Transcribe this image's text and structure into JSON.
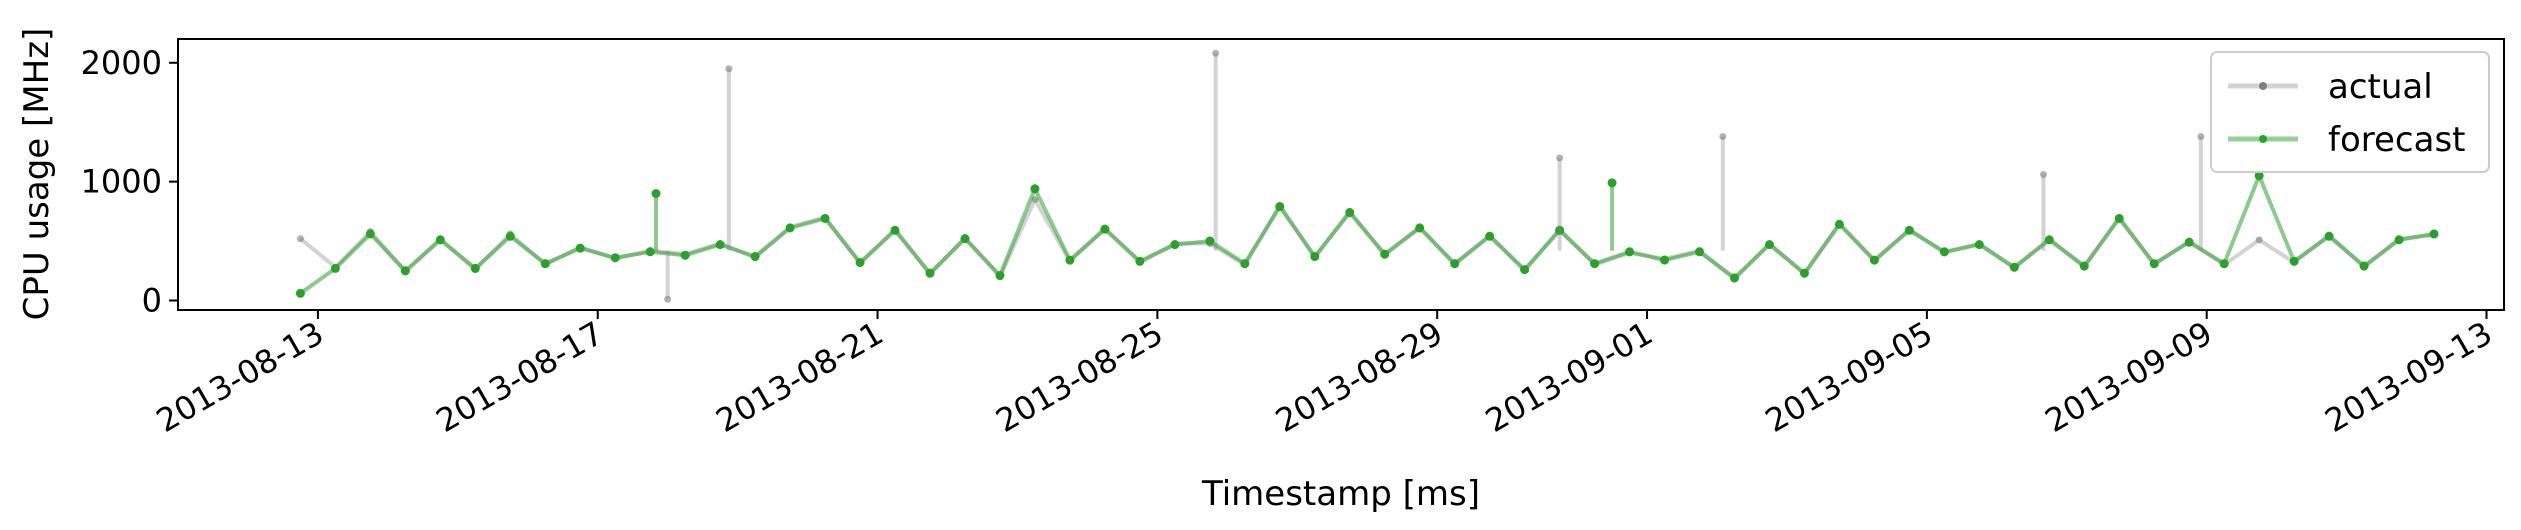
{
  "chart_data": {
    "type": "line",
    "title": "",
    "xlabel": "Timestamp [ms]",
    "ylabel": "CPU usage [MHz]",
    "xlim": [
      "2013-08-11T00:00:00",
      "2013-09-13T06:00:00"
    ],
    "ylim": [
      -80,
      2200
    ],
    "x_ticks": [
      "2013-08-13",
      "2013-08-17",
      "2013-08-21",
      "2013-08-25",
      "2013-08-29",
      "2013-09-01",
      "2013-09-05",
      "2013-09-09",
      "2013-09-13"
    ],
    "y_ticks": [
      0,
      1000,
      2000
    ],
    "grid": false,
    "legend_position": "top-right",
    "series": [
      {
        "name": "actual",
        "color": "#808080",
        "x": [
          "2013-08-12T18:00",
          "2013-08-13T06:00",
          "2013-08-13T18:00",
          "2013-08-14T06:00",
          "2013-08-14T18:00",
          "2013-08-15T06:00",
          "2013-08-15T18:00",
          "2013-08-16T06:00",
          "2013-08-16T18:00",
          "2013-08-17T06:00",
          "2013-08-17T18:00",
          "2013-08-18T06:00",
          "2013-08-18T18:00",
          "2013-08-19T06:00",
          "2013-08-19T18:00",
          "2013-08-20T06:00",
          "2013-08-20T18:00",
          "2013-08-21T06:00",
          "2013-08-21T18:00",
          "2013-08-22T06:00",
          "2013-08-22T18:00",
          "2013-08-23T06:00",
          "2013-08-23T18:00",
          "2013-08-24T06:00",
          "2013-08-24T18:00",
          "2013-08-25T06:00",
          "2013-08-25T18:00",
          "2013-08-26T06:00",
          "2013-08-26T18:00",
          "2013-08-27T06:00",
          "2013-08-27T18:00",
          "2013-08-28T06:00",
          "2013-08-28T18:00",
          "2013-08-29T06:00",
          "2013-08-29T18:00",
          "2013-08-30T06:00",
          "2013-08-30T18:00",
          "2013-08-31T06:00",
          "2013-08-31T18:00",
          "2013-09-01T06:00",
          "2013-09-01T18:00",
          "2013-09-02T06:00",
          "2013-09-02T18:00",
          "2013-09-03T06:00",
          "2013-09-03T18:00",
          "2013-09-04T06:00",
          "2013-09-04T18:00",
          "2013-09-05T06:00",
          "2013-09-05T18:00",
          "2013-09-06T06:00",
          "2013-09-06T18:00",
          "2013-09-07T06:00",
          "2013-09-07T18:00",
          "2013-09-08T06:00",
          "2013-09-08T18:00",
          "2013-09-09T06:00",
          "2013-09-09T18:00",
          "2013-09-10T06:00",
          "2013-09-10T18:00",
          "2013-09-11T06:00",
          "2013-09-11T18:00",
          "2013-09-12T06:00"
        ],
        "y": [
          520,
          280,
          580,
          240,
          520,
          260,
          560,
          300,
          450,
          350,
          420,
          390,
          480,
          360,
          620,
          700,
          310,
          600,
          220,
          530,
          200,
          850,
          330,
          610,
          320,
          480,
          480,
          300,
          800,
          360,
          750,
          380,
          620,
          300,
          550,
          250,
          600,
          300,
          400,
          350,
          420,
          180,
          480,
          220,
          650,
          330,
          600,
          400,
          480,
          270,
          520,
          280,
          700,
          300,
          500,
          300,
          510,
          320,
          550,
          280,
          520,
          550
        ]
      },
      {
        "name": "forecast",
        "color": "#2ca02c",
        "x": [
          "2013-08-12T18:00",
          "2013-08-13T06:00",
          "2013-08-13T18:00",
          "2013-08-14T06:00",
          "2013-08-14T18:00",
          "2013-08-15T06:00",
          "2013-08-15T18:00",
          "2013-08-16T06:00",
          "2013-08-16T18:00",
          "2013-08-17T06:00",
          "2013-08-17T18:00",
          "2013-08-18T06:00",
          "2013-08-18T18:00",
          "2013-08-19T06:00",
          "2013-08-19T18:00",
          "2013-08-20T06:00",
          "2013-08-20T18:00",
          "2013-08-21T06:00",
          "2013-08-21T18:00",
          "2013-08-22T06:00",
          "2013-08-22T18:00",
          "2013-08-23T06:00",
          "2013-08-23T18:00",
          "2013-08-24T06:00",
          "2013-08-24T18:00",
          "2013-08-25T06:00",
          "2013-08-25T18:00",
          "2013-08-26T06:00",
          "2013-08-26T18:00",
          "2013-08-27T06:00",
          "2013-08-27T18:00",
          "2013-08-28T06:00",
          "2013-08-28T18:00",
          "2013-08-29T06:00",
          "2013-08-29T18:00",
          "2013-08-30T06:00",
          "2013-08-30T18:00",
          "2013-08-31T06:00",
          "2013-08-31T18:00",
          "2013-09-01T06:00",
          "2013-09-01T18:00",
          "2013-09-02T06:00",
          "2013-09-02T18:00",
          "2013-09-03T06:00",
          "2013-09-03T18:00",
          "2013-09-04T06:00",
          "2013-09-04T18:00",
          "2013-09-05T06:00",
          "2013-09-05T18:00",
          "2013-09-06T06:00",
          "2013-09-06T18:00",
          "2013-09-07T06:00",
          "2013-09-07T18:00",
          "2013-09-08T06:00",
          "2013-09-08T18:00",
          "2013-09-09T06:00",
          "2013-09-09T18:00",
          "2013-09-10T06:00",
          "2013-09-10T18:00",
          "2013-09-11T06:00",
          "2013-09-11T18:00",
          "2013-09-12T06:00"
        ],
        "y": [
          60,
          270,
          560,
          250,
          510,
          270,
          540,
          310,
          440,
          360,
          410,
          380,
          470,
          370,
          610,
          690,
          320,
          590,
          230,
          520,
          210,
          940,
          340,
          600,
          330,
          470,
          500,
          310,
          790,
          370,
          740,
          390,
          610,
          310,
          540,
          260,
          590,
          310,
          410,
          340,
          410,
          190,
          470,
          230,
          640,
          340,
          590,
          410,
          470,
          280,
          510,
          290,
          690,
          310,
          490,
          310,
          1050,
          330,
          540,
          290,
          510,
          560
        ]
      }
    ],
    "spikes": [
      {
        "series": "actual",
        "x": "2013-08-18T21:00",
        "y": 1950
      },
      {
        "series": "actual",
        "x": "2013-08-25T20:00",
        "y": 2080
      },
      {
        "series": "actual",
        "x": "2013-08-30T18:00",
        "y": 1200
      },
      {
        "series": "actual",
        "x": "2013-09-02T02:00",
        "y": 1380
      },
      {
        "series": "actual",
        "x": "2013-09-06T16:00",
        "y": 1060
      },
      {
        "series": "actual",
        "x": "2013-09-08T22:00",
        "y": 1380
      },
      {
        "series": "actual",
        "x": "2013-08-18T00:00",
        "y": 10
      },
      {
        "series": "forecast",
        "x": "2013-08-17T20:00",
        "y": 900
      },
      {
        "series": "forecast",
        "x": "2013-08-31T12:00",
        "y": 990
      }
    ]
  }
}
